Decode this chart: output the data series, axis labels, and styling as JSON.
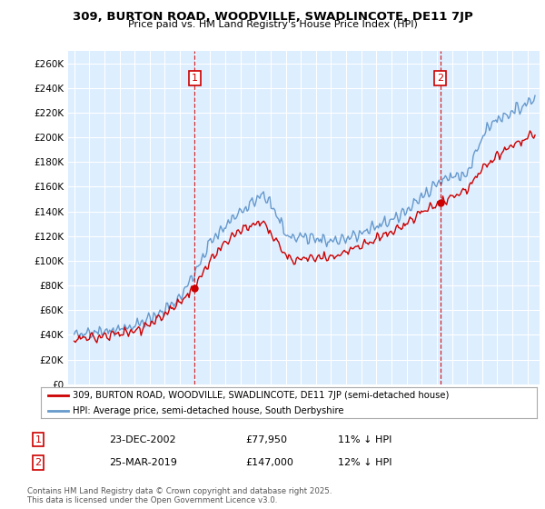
{
  "title1": "309, BURTON ROAD, WOODVILLE, SWADLINCOTE, DE11 7JP",
  "title2": "Price paid vs. HM Land Registry's House Price Index (HPI)",
  "legend_line1": "309, BURTON ROAD, WOODVILLE, SWADLINCOTE, DE11 7JP (semi-detached house)",
  "legend_line2": "HPI: Average price, semi-detached house, South Derbyshire",
  "annotation1_label": "1",
  "annotation1_date": "23-DEC-2002",
  "annotation1_price": "£77,950",
  "annotation1_note": "11% ↓ HPI",
  "annotation2_label": "2",
  "annotation2_date": "25-MAR-2019",
  "annotation2_price": "£147,000",
  "annotation2_note": "12% ↓ HPI",
  "footer": "Contains HM Land Registry data © Crown copyright and database right 2025.\nThis data is licensed under the Open Government Licence v3.0.",
  "price_color": "#cc0000",
  "hpi_color": "#6699cc",
  "background_color": "#ddeeff",
  "grid_color": "#ffffff",
  "vline_color": "#cc0000",
  "annotation_box_color": "#cc0000",
  "ylim_max": 270000,
  "ylim_min": 0,
  "sale1_year": 2002.97,
  "sale1_price": 77950,
  "sale2_year": 2019.23,
  "sale2_price": 147000
}
